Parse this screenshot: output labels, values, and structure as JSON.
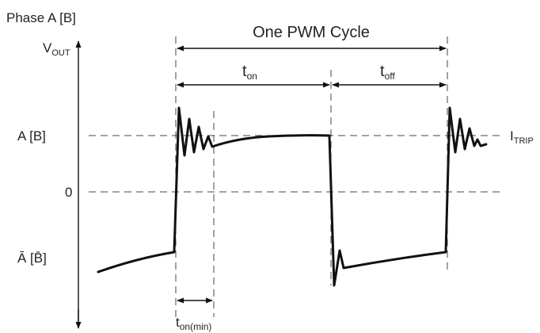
{
  "title": "Phase A [B]",
  "y_axis_label": {
    "base": "V",
    "sub": "OUT"
  },
  "levels": {
    "high": "A [B]",
    "zero": "0",
    "low": "Ā [B̄]",
    "trip": {
      "base": "I",
      "sub": "TRIP"
    }
  },
  "intervals": {
    "cycle": "One PWM Cycle",
    "on": {
      "base": "t",
      "sub": "on"
    },
    "off": {
      "base": "t",
      "sub": "off"
    },
    "on_min": {
      "base": "t",
      "sub": "on(min)"
    }
  }
}
